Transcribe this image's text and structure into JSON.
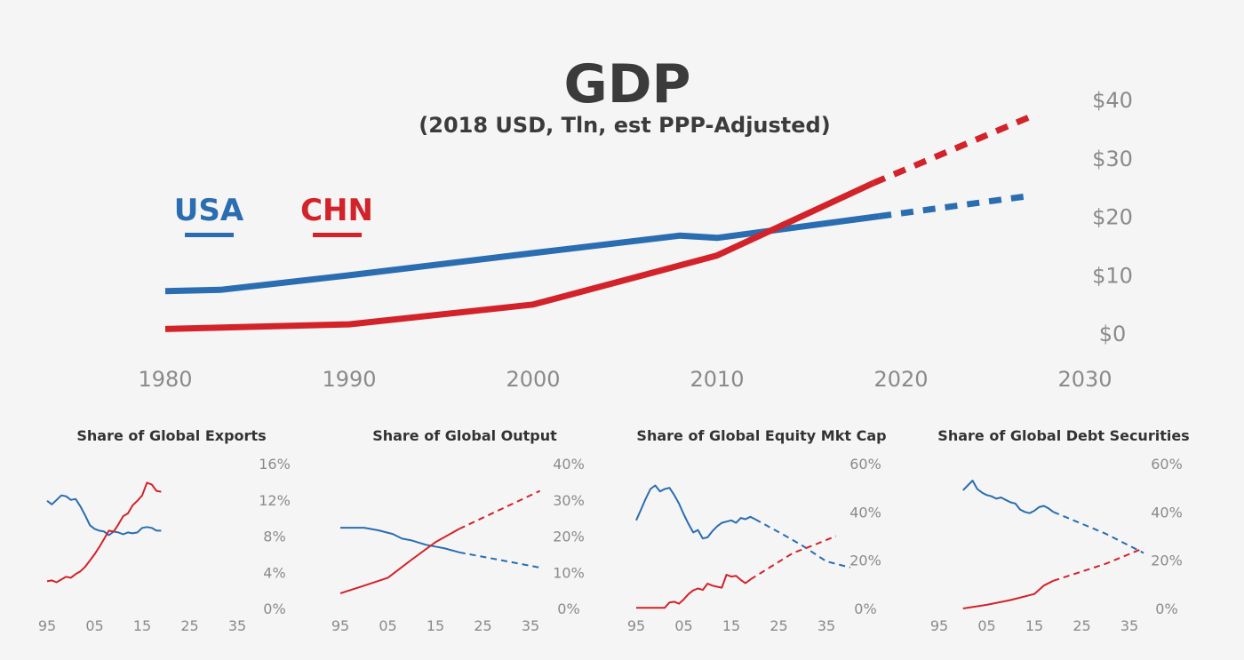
{
  "colors": {
    "usa": "#2a6db0",
    "chn": "#d2232a",
    "text": "#3b3b3b",
    "tick": "#8a8a8a",
    "background": "#f5f5f5"
  },
  "chart_data": [
    {
      "type": "line",
      "title": "GDP",
      "subtitle": "(2018 USD, Tln, est PPP-Adjusted)",
      "xlim": [
        1980,
        2030
      ],
      "ylim": [
        0,
        40
      ],
      "x_ticks": [
        "1980",
        "1990",
        "2000",
        "2010",
        "2020",
        "2030"
      ],
      "y_ticks": [
        "$0",
        "$10",
        "$20",
        "$30",
        "$40"
      ],
      "y_axis_position": "right",
      "grid": false,
      "legend": "top-left",
      "series": [
        {
          "name": "USA",
          "color": "#2a6db0",
          "actual": [
            [
              1980,
              7.2
            ],
            [
              1983,
              7.4
            ],
            [
              1990,
              9.9
            ],
            [
              2000,
              13.7
            ],
            [
              2008,
              16.7
            ],
            [
              2010,
              16.3
            ],
            [
              2018.8,
              20.0
            ]
          ],
          "projected": [
            [
              2018.8,
              20.0
            ],
            [
              2027,
              23.5
            ]
          ]
        },
        {
          "name": "CHN",
          "color": "#d2232a",
          "actual": [
            [
              1980,
              0.7
            ],
            [
              1990,
              1.5
            ],
            [
              2000,
              4.9
            ],
            [
              2010,
              13.3
            ],
            [
              2018.5,
              25.7
            ]
          ],
          "projected": [
            [
              2018.5,
              25.7
            ],
            [
              2027,
              37.0
            ]
          ]
        }
      ]
    },
    {
      "type": "line",
      "title": "Share of Global Exports",
      "xlim": [
        95,
        39
      ],
      "ylim": [
        0,
        16
      ],
      "x_ticks": [
        "95",
        "05",
        "15",
        "25",
        "35"
      ],
      "y_ticks": [
        "0%",
        "4%",
        "8%",
        "12%",
        "16%"
      ],
      "series": [
        {
          "name": "USA",
          "color": "#2a6db0",
          "actual": [
            [
              95,
              11.9
            ],
            [
              96,
              11.5
            ],
            [
              97,
              12.0
            ],
            [
              98,
              12.5
            ],
            [
              99,
              12.4
            ],
            [
              100,
              12.0
            ],
            [
              101,
              12.1
            ],
            [
              102,
              11.3
            ],
            [
              103,
              10.3
            ],
            [
              104,
              9.2
            ],
            [
              105,
              8.8
            ],
            [
              106,
              8.6
            ],
            [
              107,
              8.5
            ],
            [
              108,
              8.1
            ],
            [
              109,
              8.5
            ],
            [
              110,
              8.4
            ],
            [
              111,
              8.2
            ],
            [
              112,
              8.4
            ],
            [
              113,
              8.3
            ],
            [
              114,
              8.4
            ],
            [
              115,
              8.9
            ],
            [
              116,
              9.0
            ],
            [
              117,
              8.9
            ],
            [
              118,
              8.6
            ],
            [
              119,
              8.6
            ]
          ],
          "projected": []
        },
        {
          "name": "CHN",
          "color": "#d2232a",
          "actual": [
            [
              95,
              3.0
            ],
            [
              96,
              3.1
            ],
            [
              97,
              2.9
            ],
            [
              98,
              3.2
            ],
            [
              99,
              3.5
            ],
            [
              100,
              3.4
            ],
            [
              101,
              3.8
            ],
            [
              102,
              4.1
            ],
            [
              103,
              4.6
            ],
            [
              104,
              5.3
            ],
            [
              105,
              6.0
            ],
            [
              106,
              6.8
            ],
            [
              107,
              7.7
            ],
            [
              108,
              8.6
            ],
            [
              109,
              8.5
            ],
            [
              110,
              9.3
            ],
            [
              111,
              10.2
            ],
            [
              112,
              10.5
            ],
            [
              113,
              11.4
            ],
            [
              114,
              11.9
            ],
            [
              115,
              12.5
            ],
            [
              116,
              13.9
            ],
            [
              117,
              13.7
            ],
            [
              118,
              13.0
            ],
            [
              119,
              12.9
            ]
          ],
          "projected": []
        }
      ]
    },
    {
      "type": "line",
      "title": "Share of Global Output",
      "xlim": [
        95,
        39
      ],
      "ylim": [
        0,
        40
      ],
      "x_ticks": [
        "95",
        "05",
        "15",
        "25",
        "35"
      ],
      "y_ticks": [
        "0%",
        "10%",
        "20%",
        "30%",
        "40%"
      ],
      "series": [
        {
          "name": "USA",
          "color": "#2a6db0",
          "actual": [
            [
              95,
              22.3
            ],
            [
              100,
              22.3
            ],
            [
              103,
              21.6
            ],
            [
              106,
              20.6
            ],
            [
              108,
              19.3
            ],
            [
              110,
              18.8
            ],
            [
              113,
              17.6
            ],
            [
              115,
              17.1
            ],
            [
              117,
              16.6
            ],
            [
              120,
              15.5
            ]
          ],
          "projected": [
            [
              120,
              15.5
            ],
            [
              127,
              13.8
            ],
            [
              137,
              11.3
            ]
          ]
        },
        {
          "name": "CHN",
          "color": "#d2232a",
          "actual": [
            [
              95,
              4.2
            ],
            [
              100,
              6.3
            ],
            [
              105,
              8.5
            ],
            [
              110,
              13.5
            ],
            [
              115,
              18.3
            ],
            [
              120,
              22.0
            ]
          ],
          "projected": [
            [
              120,
              22.0
            ],
            [
              137,
              32.5
            ]
          ]
        }
      ]
    },
    {
      "type": "line",
      "title": "Share of Global Equity Mkt Cap",
      "xlim": [
        95,
        39
      ],
      "ylim": [
        0,
        60
      ],
      "x_ticks": [
        "95",
        "05",
        "15",
        "25",
        "35"
      ],
      "y_ticks": [
        "0%",
        "20%",
        "40%",
        "60%"
      ],
      "series": [
        {
          "name": "USA",
          "color": "#2a6db0",
          "actual": [
            [
              95,
              36.5
            ],
            [
              96,
              41.0
            ],
            [
              97,
              45.5
            ],
            [
              98,
              49.5
            ],
            [
              99,
              51.0
            ],
            [
              100,
              48.5
            ],
            [
              101,
              49.5
            ],
            [
              102,
              50.0
            ],
            [
              103,
              47.0
            ],
            [
              104,
              43.5
            ],
            [
              105,
              39.0
            ],
            [
              106,
              35.0
            ],
            [
              107,
              31.5
            ],
            [
              108,
              32.5
            ],
            [
              109,
              29.0
            ],
            [
              110,
              29.5
            ],
            [
              111,
              32.0
            ],
            [
              112,
              34.0
            ],
            [
              113,
              35.5
            ],
            [
              114,
              36.0
            ],
            [
              115,
              36.5
            ],
            [
              116,
              35.5
            ],
            [
              117,
              37.5
            ],
            [
              118,
              37.0
            ],
            [
              119,
              38.0
            ],
            [
              120,
              37.0
            ]
          ],
          "projected": [
            [
              120,
              37.0
            ],
            [
              126,
              30.5
            ],
            [
              130,
              26.0
            ],
            [
              135,
              19.5
            ],
            [
              140,
              17.0
            ]
          ]
        },
        {
          "name": "CHN",
          "color": "#d2232a",
          "actual": [
            [
              95,
              0.3
            ],
            [
              101,
              0.3
            ],
            [
              102,
              2.5
            ],
            [
              103,
              2.8
            ],
            [
              104,
              2.0
            ],
            [
              105,
              3.8
            ],
            [
              106,
              6.0
            ],
            [
              107,
              7.5
            ],
            [
              108,
              8.3
            ],
            [
              109,
              7.7
            ],
            [
              110,
              10.3
            ],
            [
              111,
              9.5
            ],
            [
              112,
              9.0
            ],
            [
              113,
              8.6
            ],
            [
              114,
              14.0
            ],
            [
              115,
              13.2
            ],
            [
              116,
              13.5
            ],
            [
              117,
              11.8
            ],
            [
              118,
              10.5
            ],
            [
              119,
              12.0
            ]
          ],
          "projected": [
            [
              119,
              12.0
            ],
            [
              128,
              23.0
            ],
            [
              132,
              26.0
            ],
            [
              137,
              30.0
            ]
          ]
        }
      ]
    },
    {
      "type": "line",
      "title": "Share of Global Debt Securities",
      "xlim": [
        95,
        39
      ],
      "ylim": [
        0,
        60
      ],
      "x_ticks": [
        "95",
        "05",
        "15",
        "25",
        "35"
      ],
      "y_ticks": [
        "0%",
        "20%",
        "40%",
        "60%"
      ],
      "series": [
        {
          "name": "USA",
          "color": "#2a6db0",
          "actual": [
            [
              100,
              49.0
            ],
            [
              101,
              51.0
            ],
            [
              102,
              53.0
            ],
            [
              103,
              49.5
            ],
            [
              104,
              48.0
            ],
            [
              105,
              47.0
            ],
            [
              106,
              46.5
            ],
            [
              107,
              45.5
            ],
            [
              108,
              46.0
            ],
            [
              109,
              45.0
            ],
            [
              110,
              44.0
            ],
            [
              111,
              43.5
            ],
            [
              112,
              41.0
            ],
            [
              113,
              40.0
            ],
            [
              114,
              39.5
            ],
            [
              115,
              40.5
            ],
            [
              116,
              42.0
            ],
            [
              117,
              42.5
            ],
            [
              118,
              41.5
            ],
            [
              119,
              40.0
            ]
          ],
          "projected": [
            [
              119,
              40.0
            ],
            [
              130,
              31.0
            ],
            [
              138,
              23.0
            ]
          ]
        },
        {
          "name": "CHN",
          "color": "#d2232a",
          "actual": [
            [
              100,
              0.0
            ],
            [
              105,
              1.5
            ],
            [
              110,
              3.5
            ],
            [
              115,
              6.0
            ],
            [
              117,
              9.5
            ],
            [
              119,
              11.5
            ]
          ],
          "projected": [
            [
              119,
              11.5
            ],
            [
              130,
              18.5
            ],
            [
              138,
              25.0
            ]
          ]
        }
      ]
    }
  ]
}
